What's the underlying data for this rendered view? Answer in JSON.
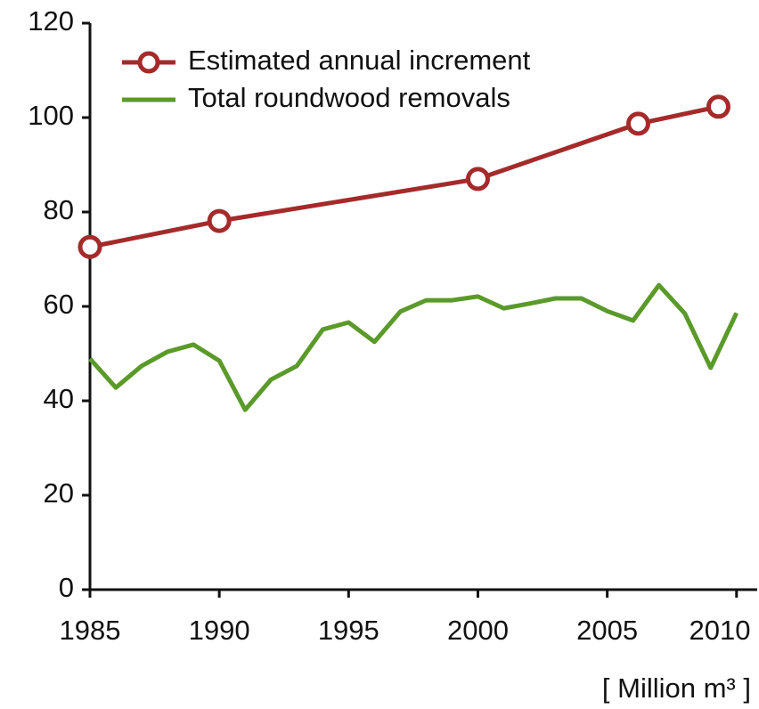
{
  "chart_data": {
    "type": "line",
    "unit_label": "[ Million m³ ]",
    "xlim": [
      1985,
      2010.8
    ],
    "xticks": [
      1985,
      1990,
      1995,
      2000,
      2005,
      2010
    ],
    "ylim": [
      0,
      120
    ],
    "yticks": [
      0,
      20,
      40,
      60,
      80,
      100,
      120
    ],
    "legend_position": "upper left",
    "series": [
      {
        "name": "Estimated annual increment",
        "color": "#a52a2a",
        "marker": "circle",
        "x": [
          1985,
          1990,
          2000,
          2006.2,
          2009.3
        ],
        "values": [
          72.6,
          78.1,
          87,
          98.7,
          102.3
        ]
      },
      {
        "name": "Total roundwood removals",
        "color": "#5a9a2a",
        "marker": "none",
        "x": [
          1985,
          1986,
          1987,
          1988,
          1989,
          1990,
          1991,
          1992,
          1993,
          1994,
          1995,
          1996,
          1997,
          1998,
          1999,
          2000,
          2001,
          2002,
          2003,
          2004,
          2005,
          2006,
          2007,
          2008,
          2009,
          2010
        ],
        "values": [
          48.9,
          42.8,
          47.4,
          50.4,
          51.9,
          48.5,
          38.1,
          44.5,
          47.4,
          55.1,
          56.6,
          52.5,
          58.9,
          61.3,
          61.3,
          62.1,
          59.6,
          60.6,
          61.7,
          61.7,
          59,
          57,
          64.5,
          58.5,
          47,
          58.6
        ]
      }
    ]
  }
}
